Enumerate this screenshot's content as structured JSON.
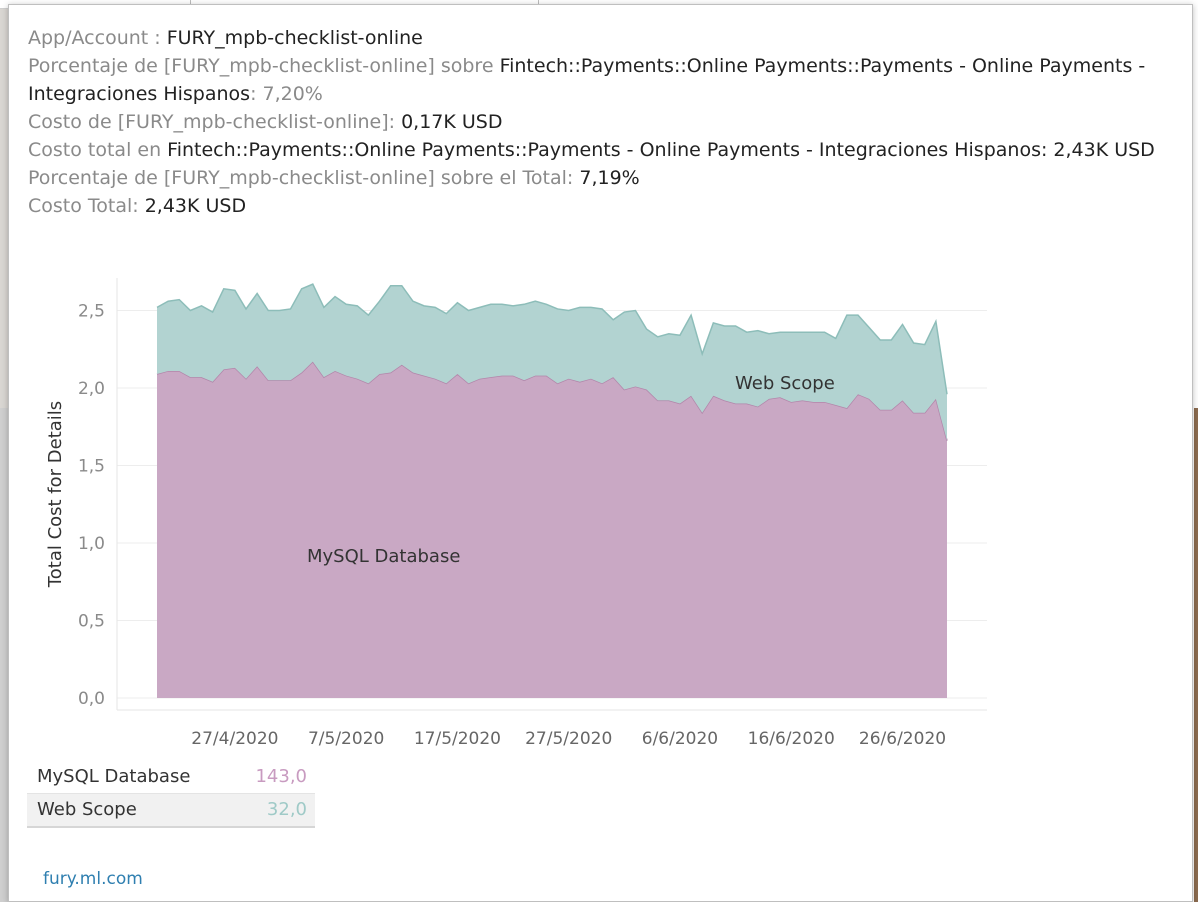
{
  "tooltip": {
    "lines": [
      {
        "label": "App/Account : ",
        "value": "FURY_mpb-checklist-online",
        "tail": ""
      },
      {
        "label": "Porcentaje de [FURY_mpb-checklist-online] sobre ",
        "value": "Fintech::Payments::Online Payments::Payments - Online Payments - Integraciones Hispanos",
        "tail": ": 7,20%"
      },
      {
        "label": "Costo de [FURY_mpb-checklist-online]: ",
        "value": "0,17K USD",
        "tail": ""
      },
      {
        "label": "Costo total en ",
        "value": "Fintech::Payments::Online Payments::Payments - Online Payments - Integraciones Hispanos",
        "tail": ":  2,43K USD"
      },
      {
        "label": "Porcentaje de [FURY_mpb-checklist-online] sobre el Total: ",
        "value": "7,19%",
        "tail": ""
      },
      {
        "label": "Costo Total: ",
        "value": "2,43K USD",
        "tail": ""
      }
    ]
  },
  "chart_data": {
    "type": "area",
    "stacked": true,
    "ylabel": "Total Cost for Details",
    "xlabel": "",
    "ylim": [
      0,
      2.8
    ],
    "y_ticks": [
      "0,0",
      "0,5",
      "1,0",
      "1,5",
      "2,0",
      "2,5"
    ],
    "x_start": "2020-04-20",
    "x_end": "2020-06-30",
    "x_ticks": [
      "27/4/2020",
      "7/5/2020",
      "17/5/2020",
      "27/5/2020",
      "6/6/2020",
      "16/6/2020",
      "26/6/2020"
    ],
    "series": [
      {
        "name": "MySQL Database",
        "color": "#c9a8c4",
        "line_color": "#b286aa",
        "values": [
          2.09,
          2.11,
          2.11,
          2.07,
          2.07,
          2.04,
          2.12,
          2.13,
          2.06,
          2.14,
          2.05,
          2.05,
          2.05,
          2.1,
          2.17,
          2.07,
          2.11,
          2.08,
          2.06,
          2.03,
          2.09,
          2.1,
          2.15,
          2.1,
          2.08,
          2.06,
          2.03,
          2.09,
          2.03,
          2.06,
          2.07,
          2.08,
          2.08,
          2.05,
          2.08,
          2.08,
          2.03,
          2.06,
          2.04,
          2.06,
          2.03,
          2.07,
          1.99,
          2.01,
          1.99,
          1.92,
          1.92,
          1.9,
          1.95,
          1.84,
          1.95,
          1.92,
          1.9,
          1.9,
          1.88,
          1.93,
          1.94,
          1.91,
          1.92,
          1.91,
          1.91,
          1.89,
          1.87,
          1.96,
          1.93,
          1.86,
          1.86,
          1.92,
          1.84,
          1.84,
          1.93,
          1.66
        ]
      },
      {
        "name": "Web Scope",
        "color": "#b2d3d1",
        "line_color": "#8dbdb9",
        "values": [
          0.43,
          0.45,
          0.46,
          0.43,
          0.46,
          0.45,
          0.52,
          0.5,
          0.45,
          0.47,
          0.45,
          0.45,
          0.46,
          0.54,
          0.5,
          0.45,
          0.48,
          0.46,
          0.47,
          0.44,
          0.47,
          0.56,
          0.51,
          0.46,
          0.45,
          0.46,
          0.45,
          0.46,
          0.47,
          0.46,
          0.47,
          0.46,
          0.45,
          0.49,
          0.48,
          0.46,
          0.48,
          0.44,
          0.48,
          0.46,
          0.48,
          0.37,
          0.5,
          0.49,
          0.39,
          0.41,
          0.43,
          0.44,
          0.52,
          0.38,
          0.47,
          0.48,
          0.5,
          0.46,
          0.49,
          0.42,
          0.42,
          0.45,
          0.44,
          0.45,
          0.45,
          0.43,
          0.6,
          0.51,
          0.46,
          0.45,
          0.45,
          0.49,
          0.45,
          0.44,
          0.5,
          0.3
        ]
      }
    ],
    "annotations": [
      "MySQL Database",
      "Web Scope"
    ],
    "gridlines": true
  },
  "legend_table": [
    {
      "name": "MySQL Database",
      "value": "143,0",
      "color": "#c89bc0"
    },
    {
      "name": "Web Scope",
      "value": "32,0",
      "color": "#9fcac7"
    }
  ],
  "footer": {
    "link": "fury.ml.com"
  }
}
